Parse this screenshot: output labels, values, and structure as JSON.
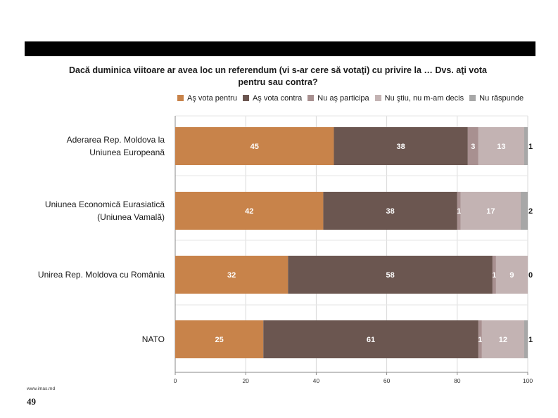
{
  "page": {
    "footer_url": "www.imas.md",
    "page_number": "49"
  },
  "chart_data": {
    "type": "bar",
    "orientation": "horizontal",
    "stacked": true,
    "title": "Dacă duminica viitoare ar avea loc un referendum (vi s-ar cere să votaţi) cu privire la … Dvs. aţi vota pentru sau contra?",
    "legend_position": "top",
    "categories": [
      "Aderarea Rep. Moldova la Uniunea Europeană",
      "Uniunea Economică Eurasiatică (Uniunea Vamală)",
      "Unirea Rep. Moldova cu România",
      "NATO"
    ],
    "series": [
      {
        "name": "Aş vota pentru",
        "color": "#c8834a",
        "values": [
          45,
          42,
          32,
          25
        ]
      },
      {
        "name": "Aş vota contra",
        "color": "#6b5650",
        "values": [
          38,
          38,
          58,
          61
        ]
      },
      {
        "name": "Nu aş participa",
        "color": "#a89090",
        "values": [
          3,
          1,
          1,
          1
        ]
      },
      {
        "name": "Nu ştiu, nu m-am decis",
        "color": "#c3b3b3",
        "values": [
          13,
          17,
          9,
          12
        ]
      },
      {
        "name": "Nu răspunde",
        "color": "#a7a7a7",
        "values": [
          1,
          2,
          0,
          1
        ]
      }
    ],
    "xlim": [
      0,
      100
    ],
    "xticks": [
      0,
      20,
      40,
      60,
      80,
      100
    ],
    "grid": true
  }
}
